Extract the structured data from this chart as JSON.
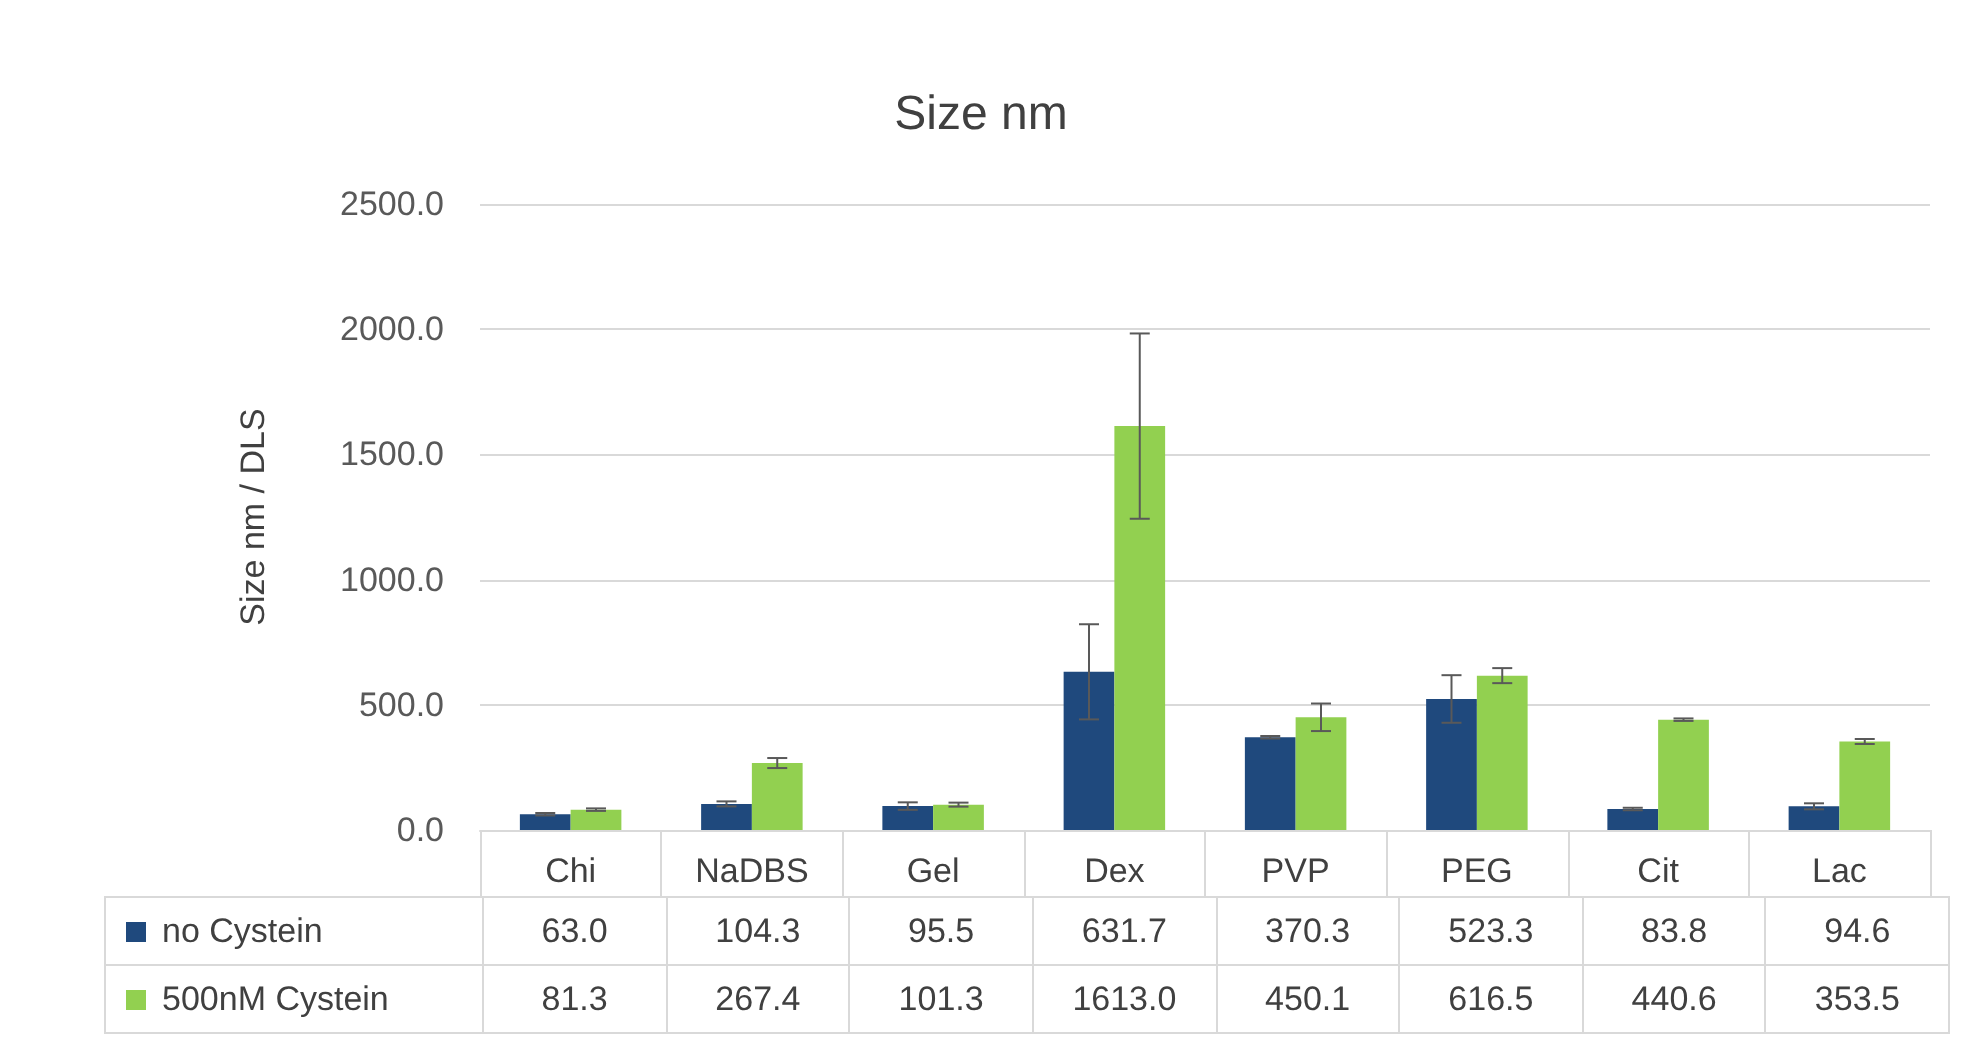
{
  "chart_data": {
    "type": "bar",
    "title": "Size nm",
    "ylabel": "Size nm / DLS",
    "categories": [
      "Chi",
      "NaDBS",
      "Gel",
      "Dex",
      "PVP",
      "PEG",
      "Cit",
      "Lac"
    ],
    "series": [
      {
        "name": "no Cystein",
        "color": "#1f497d",
        "values": [
          63.0,
          104.3,
          95.5,
          631.7,
          370.3,
          523.3,
          83.8,
          94.6
        ],
        "errors": [
          5,
          10,
          15,
          190,
          5,
          95,
          5,
          12
        ],
        "value_labels": [
          "63.0",
          "104.3",
          "95.5",
          "631.7",
          "370.3",
          "523.3",
          "83.8",
          "94.6"
        ]
      },
      {
        "name": "500nM Cystein",
        "color": "#92d050",
        "values": [
          81.3,
          267.4,
          101.3,
          1613.0,
          450.1,
          616.5,
          440.6,
          353.5
        ],
        "errors": [
          5,
          20,
          8,
          370,
          55,
          30,
          5,
          10
        ],
        "value_labels": [
          "81.3",
          "267.4",
          "101.3",
          "1613.0",
          "450.1",
          "616.5",
          "440.6",
          "353.5"
        ]
      }
    ],
    "ylim": [
      0,
      2500
    ],
    "yticks": [
      {
        "value": 0,
        "label": "0.0"
      },
      {
        "value": 500,
        "label": "500.0"
      },
      {
        "value": 1000,
        "label": "1000.0"
      },
      {
        "value": 1500,
        "label": "1500.0"
      },
      {
        "value": 2000,
        "label": "2000.0"
      },
      {
        "value": 2500,
        "label": "2500.0"
      }
    ],
    "grid": "y",
    "legend": "bottom"
  }
}
